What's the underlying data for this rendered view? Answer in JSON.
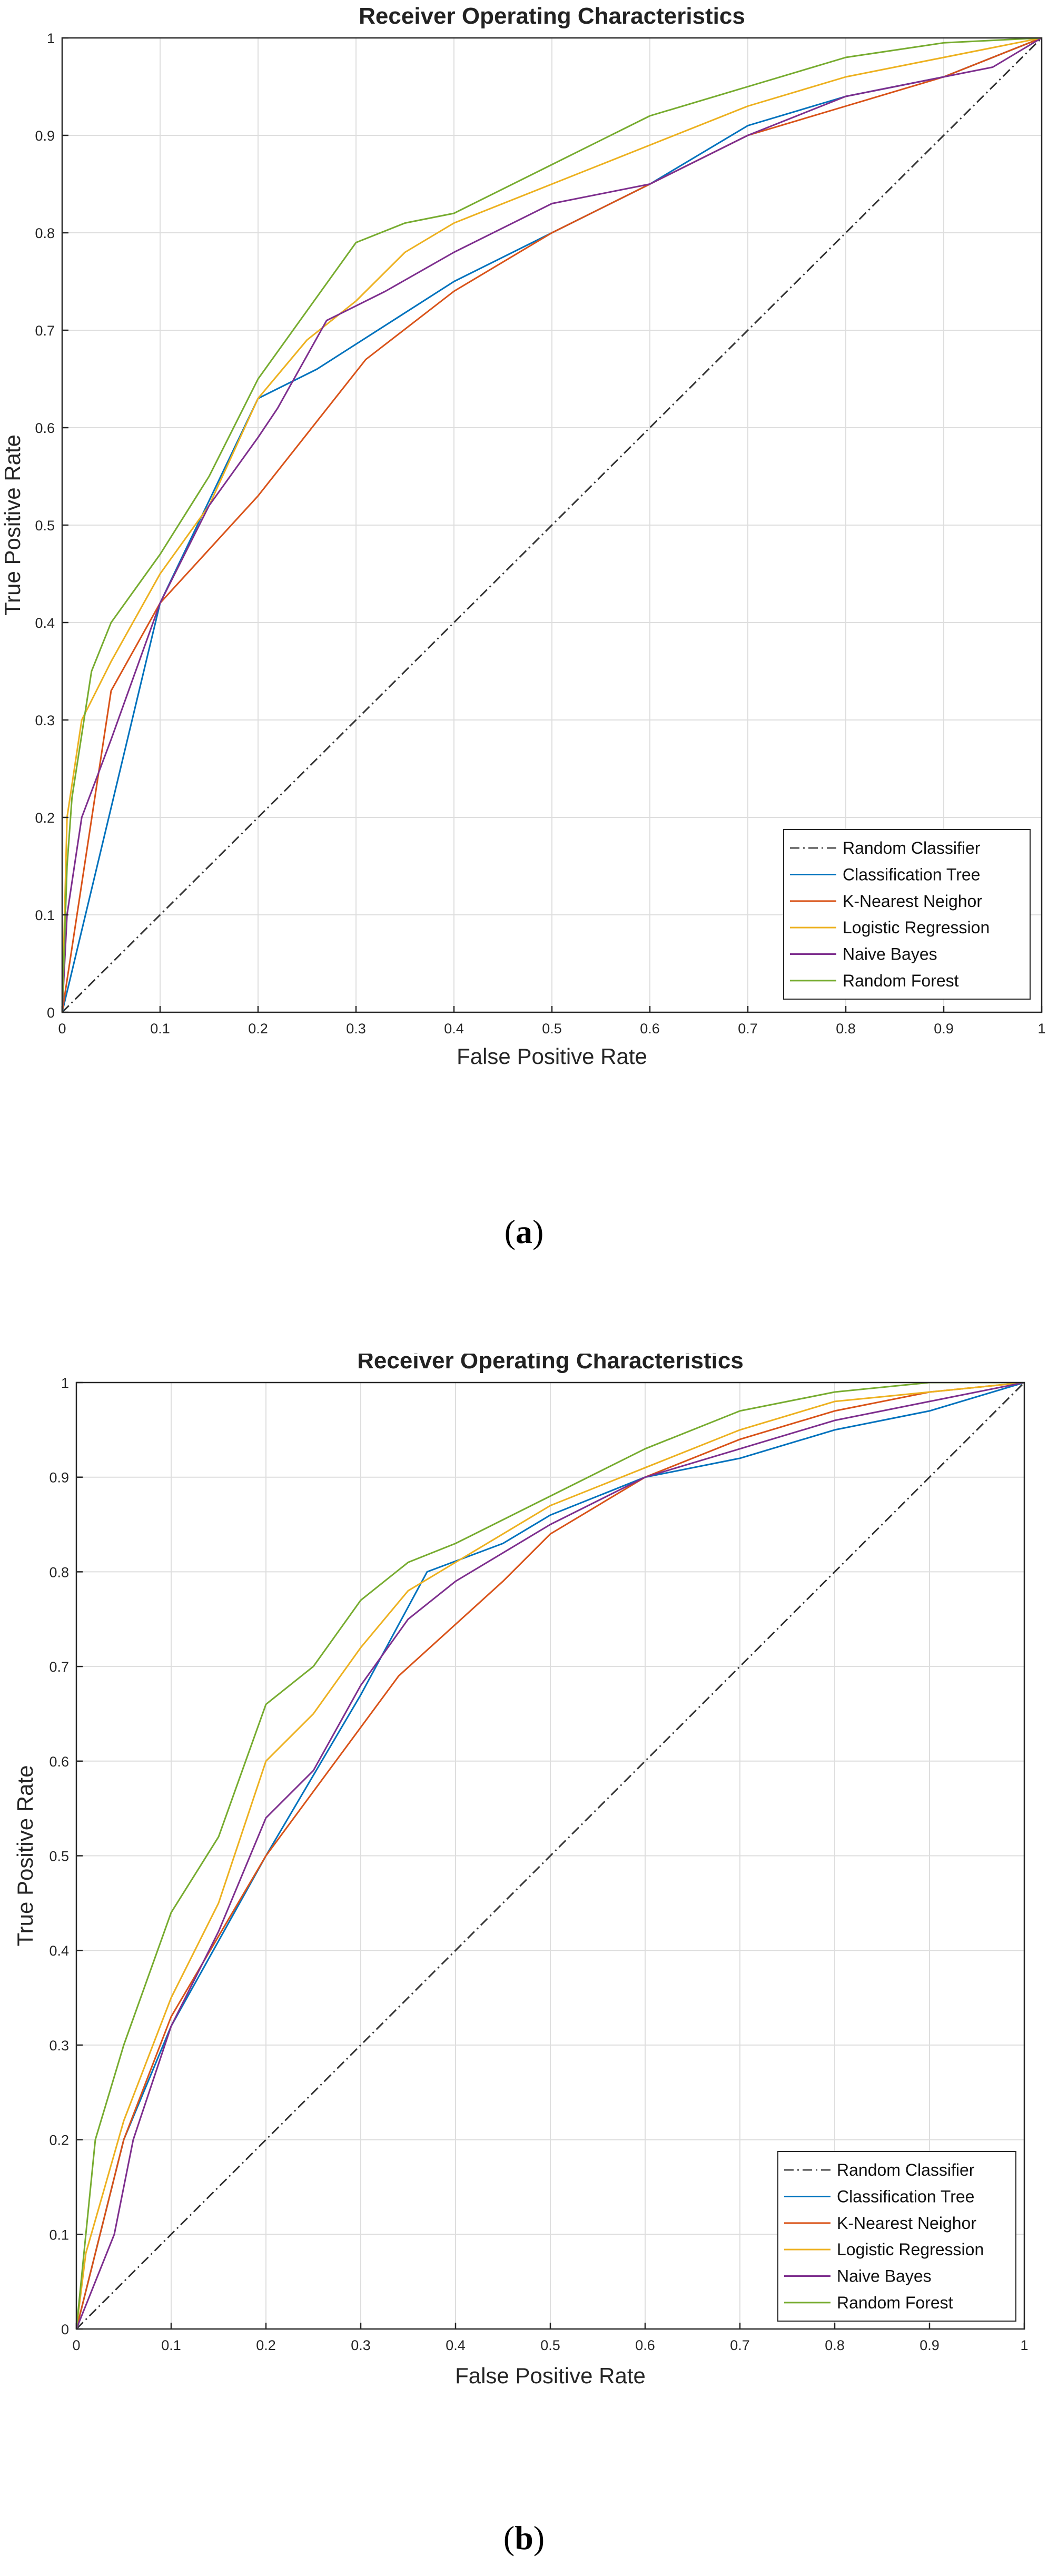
{
  "figure": {
    "subfigures": [
      {
        "caption_letter": "a",
        "caption_open": "(",
        "caption_close": ")"
      },
      {
        "caption_letter": "b",
        "caption_open": "(",
        "caption_close": ")"
      }
    ]
  },
  "chart_data": [
    {
      "type": "line",
      "title": "Receiver Operating Characteristics",
      "xlabel": "False Positive Rate",
      "ylabel": "True Positive Rate",
      "xlim": [
        0,
        1
      ],
      "ylim": [
        0,
        1
      ],
      "grid": true,
      "legend_position": "bottom-right",
      "xticks": [
        0,
        0.1,
        0.2,
        0.3,
        0.4,
        0.5,
        0.6,
        0.7,
        0.8,
        0.9,
        1
      ],
      "xtick_labels": [
        "0",
        "0.1",
        "0.2",
        "0.3",
        "0.4",
        "0.5",
        "0.6",
        "0.7",
        "0.8",
        "0.9",
        "1"
      ],
      "yticks": [
        0,
        0.1,
        0.2,
        0.3,
        0.4,
        0.5,
        0.6,
        0.7,
        0.8,
        0.9,
        1
      ],
      "ytick_labels": [
        "0",
        "0.1",
        "0.2",
        "0.3",
        "0.4",
        "0.5",
        "0.6",
        "0.7",
        "0.8",
        "0.9",
        "1"
      ],
      "series": [
        {
          "name": "Random Classifier",
          "color": "#333333",
          "style": "dashdot",
          "x": [
            0,
            1
          ],
          "y": [
            0,
            1
          ]
        },
        {
          "name": "Classification Tree",
          "color": "#0072BD",
          "style": "solid",
          "x": [
            0,
            0.1,
            0.2,
            0.26,
            0.4,
            0.5,
            0.6,
            0.7,
            0.8,
            0.9,
            1
          ],
          "y": [
            0,
            0.42,
            0.63,
            0.66,
            0.75,
            0.8,
            0.85,
            0.91,
            0.94,
            0.96,
            1
          ]
        },
        {
          "name": "K-Nearest Neighor",
          "color": "#D95319",
          "style": "solid",
          "x": [
            0,
            0.05,
            0.1,
            0.2,
            0.31,
            0.4,
            0.5,
            0.6,
            0.7,
            0.8,
            0.9,
            1
          ],
          "y": [
            0,
            0.33,
            0.42,
            0.53,
            0.67,
            0.74,
            0.8,
            0.85,
            0.9,
            0.93,
            0.96,
            1
          ]
        },
        {
          "name": "Logistic Regression",
          "color": "#EDB120",
          "style": "solid",
          "x": [
            0,
            0.005,
            0.02,
            0.05,
            0.1,
            0.15,
            0.2,
            0.25,
            0.3,
            0.35,
            0.4,
            0.5,
            0.6,
            0.7,
            0.8,
            0.9,
            1
          ],
          "y": [
            0,
            0.2,
            0.3,
            0.36,
            0.45,
            0.52,
            0.63,
            0.69,
            0.73,
            0.78,
            0.81,
            0.85,
            0.89,
            0.93,
            0.96,
            0.98,
            1
          ]
        },
        {
          "name": "Naive Bayes",
          "color": "#7E2F8E",
          "style": "solid",
          "x": [
            0,
            0.005,
            0.02,
            0.05,
            0.1,
            0.15,
            0.2,
            0.22,
            0.27,
            0.33,
            0.4,
            0.5,
            0.6,
            0.7,
            0.8,
            0.9,
            0.95,
            1
          ],
          "y": [
            0,
            0.1,
            0.2,
            0.28,
            0.42,
            0.52,
            0.59,
            0.62,
            0.71,
            0.74,
            0.78,
            0.83,
            0.85,
            0.9,
            0.94,
            0.96,
            0.97,
            1
          ]
        },
        {
          "name": "Random Forest",
          "color": "#77AC30",
          "style": "solid",
          "x": [
            0,
            0.005,
            0.01,
            0.03,
            0.05,
            0.1,
            0.15,
            0.2,
            0.25,
            0.3,
            0.35,
            0.4,
            0.5,
            0.6,
            0.7,
            0.8,
            0.9,
            1
          ],
          "y": [
            0,
            0.15,
            0.22,
            0.35,
            0.4,
            0.47,
            0.55,
            0.65,
            0.72,
            0.79,
            0.81,
            0.82,
            0.87,
            0.92,
            0.95,
            0.98,
            0.995,
            1
          ]
        }
      ]
    },
    {
      "type": "line",
      "title": "Receiver Operating Characteristics",
      "xlabel": "False Positive Rate",
      "ylabel": "True Positive Rate",
      "xlim": [
        0,
        1
      ],
      "ylim": [
        0,
        1
      ],
      "grid": true,
      "legend_position": "bottom-right",
      "xticks": [
        0,
        0.1,
        0.2,
        0.3,
        0.4,
        0.5,
        0.6,
        0.7,
        0.8,
        0.9,
        1
      ],
      "xtick_labels": [
        "0",
        "0.1",
        "0.2",
        "0.3",
        "0.4",
        "0.5",
        "0.6",
        "0.7",
        "0.8",
        "0.9",
        "1"
      ],
      "yticks": [
        0,
        0.1,
        0.2,
        0.3,
        0.4,
        0.5,
        0.6,
        0.7,
        0.8,
        0.9,
        1
      ],
      "ytick_labels": [
        "0",
        "0.1",
        "0.2",
        "0.3",
        "0.4",
        "0.5",
        "0.6",
        "0.7",
        "0.8",
        "0.9",
        "1"
      ],
      "series": [
        {
          "name": "Random Classifier",
          "color": "#333333",
          "style": "dashdot",
          "x": [
            0,
            1
          ],
          "y": [
            0,
            1
          ]
        },
        {
          "name": "Classification Tree",
          "color": "#0072BD",
          "style": "solid",
          "x": [
            0,
            0.05,
            0.1,
            0.2,
            0.3,
            0.37,
            0.45,
            0.5,
            0.6,
            0.7,
            0.8,
            0.9,
            1
          ],
          "y": [
            0,
            0.2,
            0.32,
            0.5,
            0.67,
            0.8,
            0.83,
            0.86,
            0.9,
            0.92,
            0.95,
            0.97,
            1
          ]
        },
        {
          "name": "K-Nearest Neighor",
          "color": "#D95319",
          "style": "solid",
          "x": [
            0,
            0.05,
            0.1,
            0.2,
            0.34,
            0.45,
            0.5,
            0.6,
            0.7,
            0.8,
            0.9,
            1
          ],
          "y": [
            0,
            0.2,
            0.33,
            0.5,
            0.69,
            0.79,
            0.84,
            0.9,
            0.94,
            0.97,
            0.99,
            1
          ]
        },
        {
          "name": "Logistic Regression",
          "color": "#EDB120",
          "style": "solid",
          "x": [
            0,
            0.01,
            0.03,
            0.05,
            0.1,
            0.15,
            0.2,
            0.25,
            0.3,
            0.35,
            0.4,
            0.5,
            0.6,
            0.7,
            0.8,
            0.9,
            1
          ],
          "y": [
            0,
            0.08,
            0.15,
            0.22,
            0.35,
            0.45,
            0.6,
            0.65,
            0.72,
            0.78,
            0.81,
            0.87,
            0.91,
            0.95,
            0.98,
            0.99,
            1
          ]
        },
        {
          "name": "Naive Bayes",
          "color": "#7E2F8E",
          "style": "solid",
          "x": [
            0,
            0.02,
            0.04,
            0.06,
            0.1,
            0.15,
            0.2,
            0.25,
            0.3,
            0.35,
            0.4,
            0.5,
            0.6,
            0.7,
            0.8,
            0.9,
            1
          ],
          "y": [
            0,
            0.05,
            0.1,
            0.2,
            0.32,
            0.42,
            0.54,
            0.59,
            0.68,
            0.75,
            0.79,
            0.85,
            0.9,
            0.93,
            0.96,
            0.98,
            1
          ]
        },
        {
          "name": "Random Forest",
          "color": "#77AC30",
          "style": "solid",
          "x": [
            0,
            0.005,
            0.02,
            0.05,
            0.1,
            0.15,
            0.2,
            0.25,
            0.3,
            0.35,
            0.4,
            0.5,
            0.6,
            0.7,
            0.8,
            0.9,
            1
          ],
          "y": [
            0,
            0.05,
            0.2,
            0.3,
            0.44,
            0.52,
            0.66,
            0.7,
            0.77,
            0.81,
            0.83,
            0.88,
            0.93,
            0.97,
            0.99,
            1,
            1
          ]
        }
      ]
    }
  ]
}
